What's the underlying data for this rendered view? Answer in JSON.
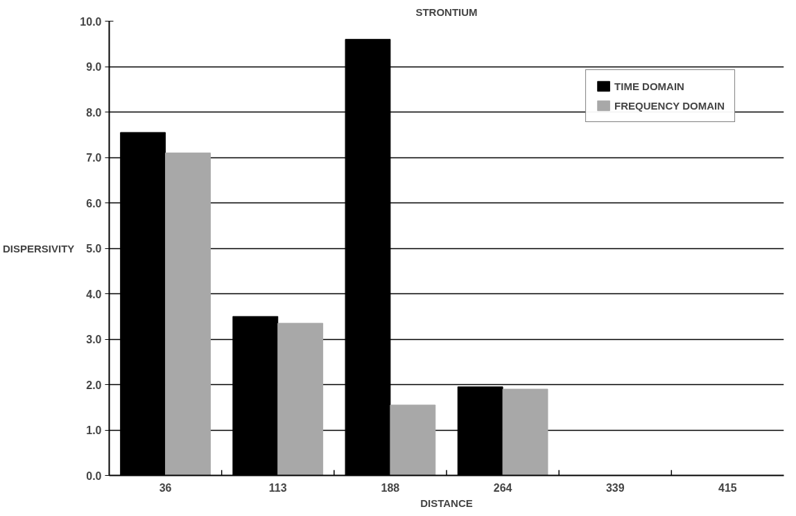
{
  "chart_data": {
    "type": "bar",
    "title": "STRONTIUM",
    "xlabel": "DISTANCE",
    "ylabel": "DISPERSIVITY",
    "categories": [
      "36",
      "113",
      "188",
      "264",
      "339",
      "415"
    ],
    "series": [
      {
        "name": "TIME DOMAIN",
        "color": "#000000",
        "values": [
          7.55,
          3.5,
          9.6,
          1.95,
          null,
          null
        ]
      },
      {
        "name": "FREQUENCY DOMAIN",
        "color": "#a8a8a8",
        "values": [
          7.1,
          3.35,
          1.55,
          1.9,
          null,
          null
        ]
      }
    ],
    "ylim": [
      0,
      10
    ],
    "yticks": [
      {
        "value": 0,
        "label": "0.0"
      },
      {
        "value": 1,
        "label": "1.0"
      },
      {
        "value": 2,
        "label": "2.0"
      },
      {
        "value": 3,
        "label": "3.0"
      },
      {
        "value": 4,
        "label": "4.0"
      },
      {
        "value": 5,
        "label": "5.0"
      },
      {
        "value": 6,
        "label": "6.0"
      },
      {
        "value": 7,
        "label": "7.0"
      },
      {
        "value": 8,
        "label": "8.0"
      },
      {
        "value": 9,
        "label": "9.0"
      },
      {
        "value": 10,
        "label": "10.0"
      }
    ],
    "grid": "y",
    "legend": "top right"
  }
}
